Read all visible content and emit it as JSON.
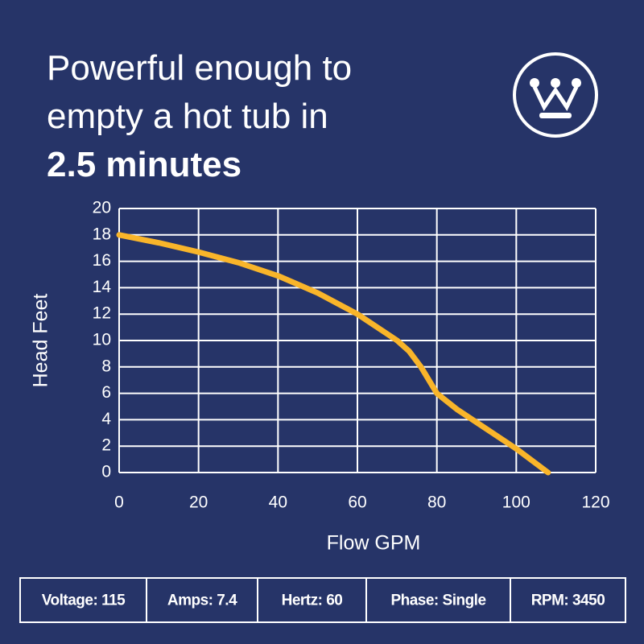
{
  "title_lines": [
    "Powerful enough to",
    "empty a hot tub in",
    "2.5 minutes"
  ],
  "chart_data": {
    "type": "line",
    "x": [
      0,
      10,
      20,
      30,
      40,
      50,
      60,
      70,
      73,
      76,
      78,
      80,
      85,
      90,
      100,
      108
    ],
    "values": [
      18,
      17.4,
      16.7,
      15.9,
      14.9,
      13.6,
      12,
      10,
      9.2,
      8,
      7,
      6,
      4.8,
      3.8,
      1.8,
      0
    ],
    "color": "#f9b52a",
    "xlabel": "Flow GPM",
    "ylabel": "Head Feet",
    "xlim": [
      0,
      120
    ],
    "xticks": [
      0,
      20,
      40,
      60,
      80,
      100,
      120
    ],
    "ylim": [
      0,
      20
    ],
    "yticks": [
      0,
      2,
      4,
      6,
      8,
      10,
      12,
      14,
      16,
      18,
      20
    ],
    "grid": true
  },
  "specs": [
    "Voltage: 115",
    "Amps: 7.4",
    "Hertz: 60",
    "Phase: Single",
    "RPM: 3450"
  ]
}
